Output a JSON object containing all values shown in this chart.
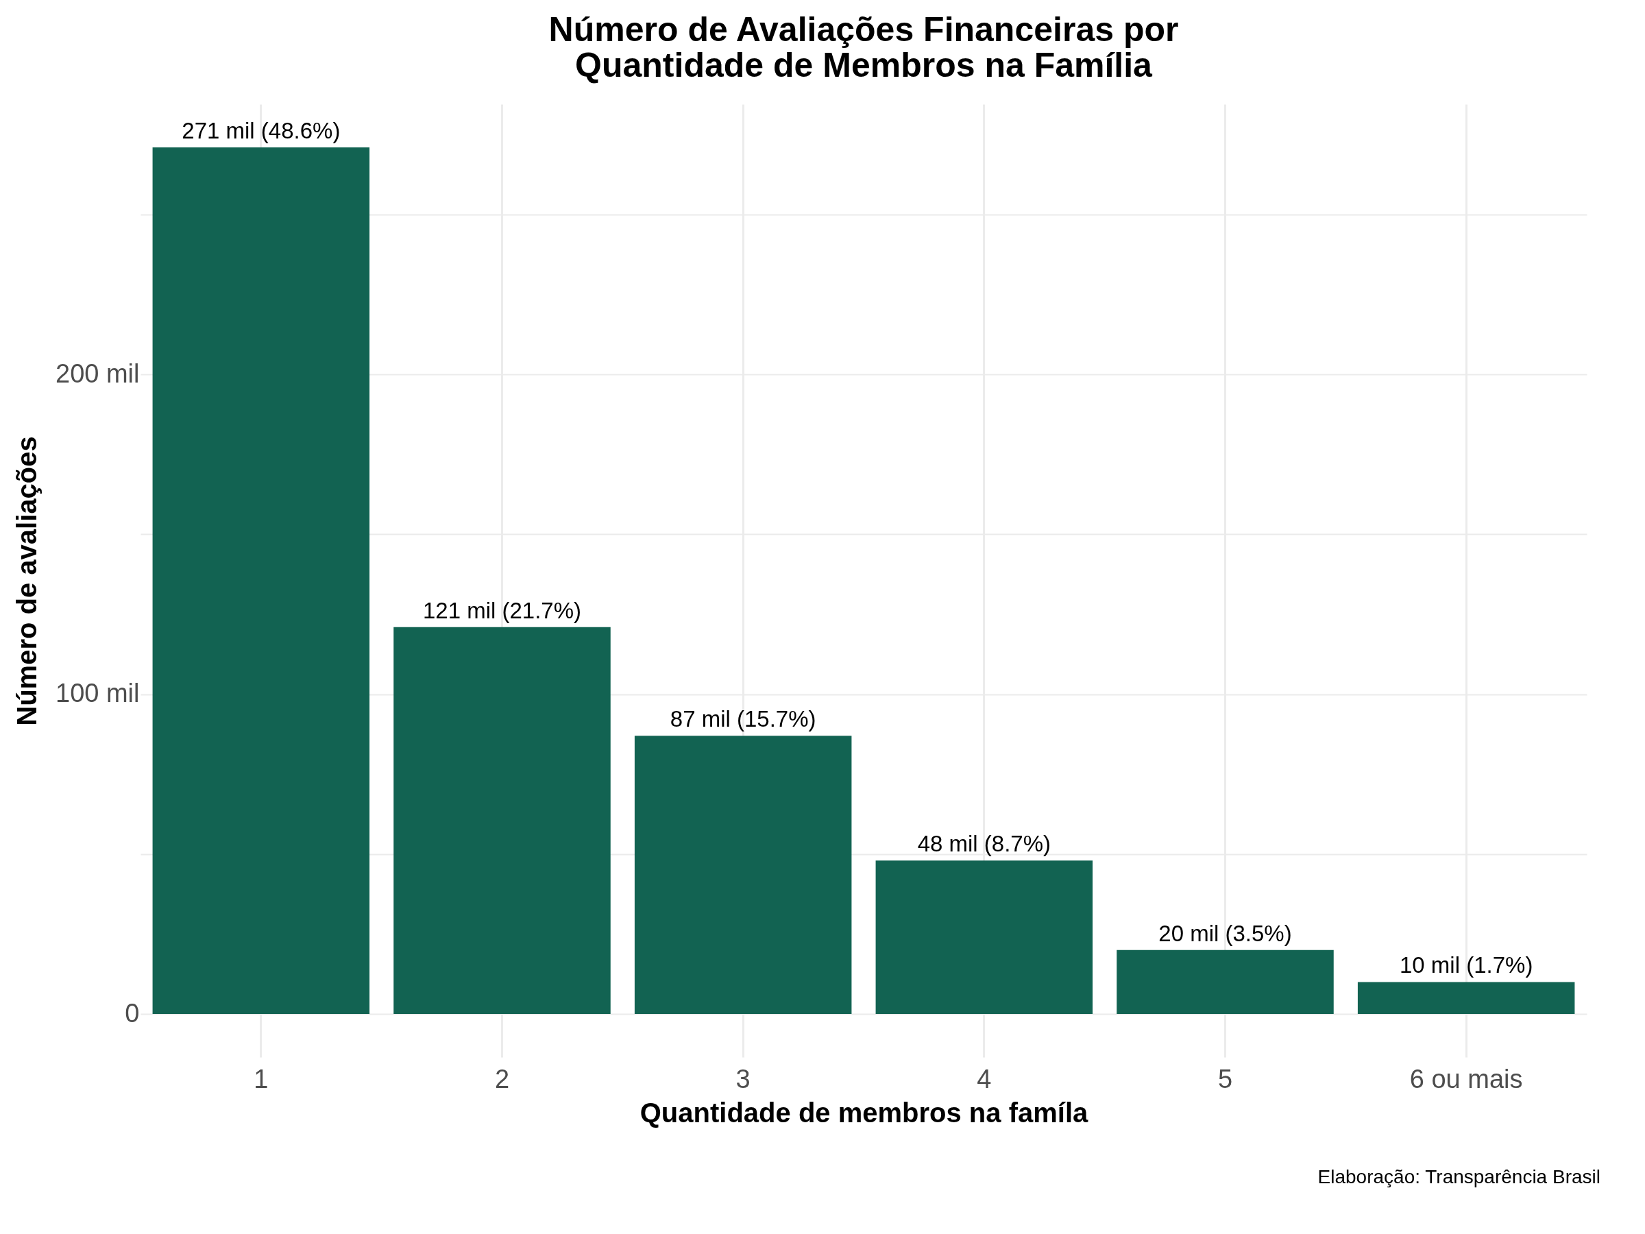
{
  "chart_data": {
    "type": "bar",
    "title": "Número de Avaliações Financeiras por\nQuantidade de Membros na Família",
    "xlabel": "Quantidade de membros na famíla",
    "ylabel": "Número de avaliações",
    "categories": [
      "1",
      "2",
      "3",
      "4",
      "5",
      "6 ou mais"
    ],
    "values": [
      271,
      121,
      87,
      48,
      20,
      10
    ],
    "value_labels": [
      "271 mil (48.6%)",
      "121 mil (21.7%)",
      "87 mil (15.7%)",
      "48 mil (8.7%)",
      "20 mil (3.5%)",
      "10 mil (1.7%)"
    ],
    "color": "#126352",
    "ylim": [
      -13.5,
      284.5
    ],
    "yticks": [
      {
        "value": 0,
        "label": "0"
      },
      {
        "value": 50,
        "label": null
      },
      {
        "value": 100,
        "label": "100 mil"
      },
      {
        "value": 150,
        "label": null
      },
      {
        "value": 200,
        "label": "200 mil"
      },
      {
        "value": 250,
        "label": null
      }
    ],
    "grid": true,
    "annotations": [
      "Elaboração: Transparência Brasil"
    ]
  }
}
